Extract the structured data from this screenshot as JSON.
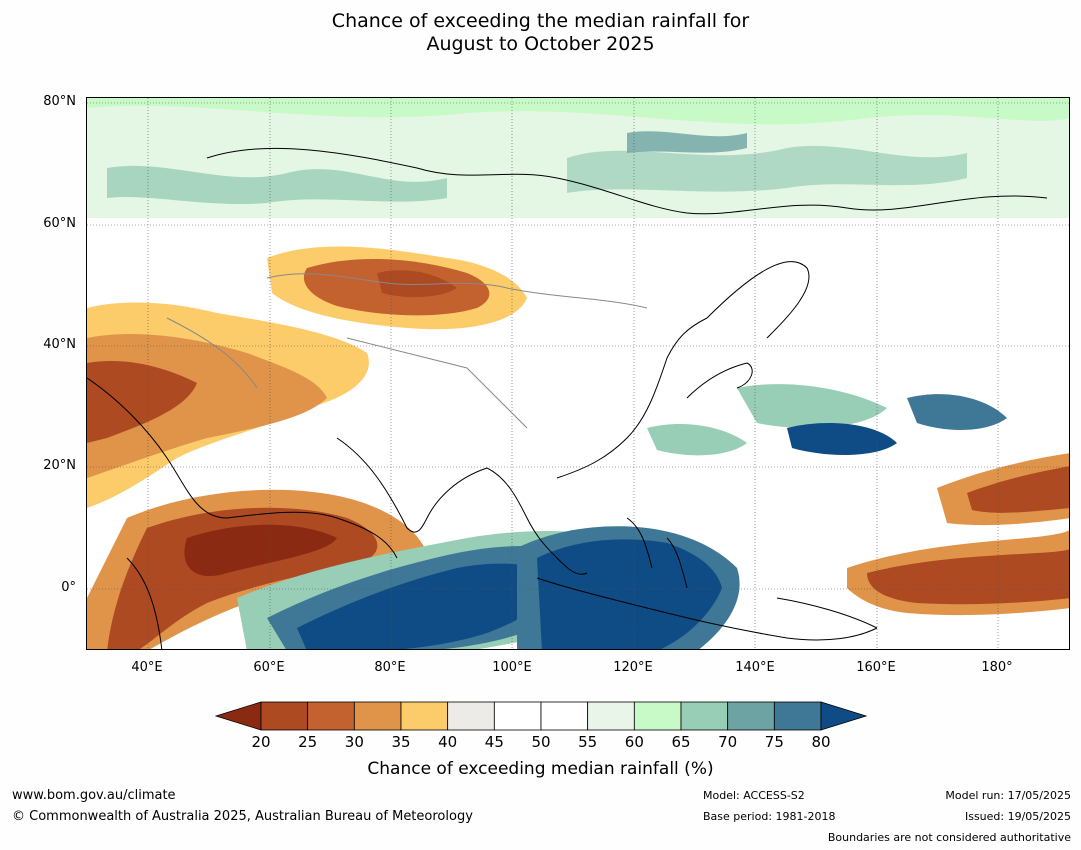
{
  "title_line1": "Chance of exceeding the median rainfall for",
  "title_line2": "August to October 2025",
  "lat_labels": [
    "80°N",
    "60°N",
    "40°N",
    "20°N",
    "0°"
  ],
  "lon_labels": [
    "40°E",
    "60°E",
    "80°E",
    "100°E",
    "120°E",
    "140°E",
    "160°E",
    "180°"
  ],
  "colorbar": {
    "label": "Chance of exceeding median rainfall (%)",
    "ticks": [
      "20",
      "25",
      "30",
      "35",
      "40",
      "45",
      "50",
      "55",
      "60",
      "65",
      "70",
      "75",
      "80"
    ],
    "colors": [
      "#8b2a12",
      "#ad4a22",
      "#c4622f",
      "#df944a",
      "#fccc6a",
      "#edebe7",
      "#ffffff",
      "#ffffff",
      "#e8f5e8",
      "#c8fac8",
      "#98cdb6",
      "#6da3a3",
      "#3e7896",
      "#0f4c85"
    ]
  },
  "footer": {
    "url": "www.bom.gov.au/climate",
    "copyright": "© Commonwealth of Australia 2025, Australian Bureau of Meteorology",
    "model": "Model: ACCESS-S2",
    "base_period": "Base period: 1981-2018",
    "model_run": "Model run: 17/05/2025",
    "issued": "Issued: 19/05/2025",
    "disclaimer": "Boundaries are not considered authoritative"
  }
}
